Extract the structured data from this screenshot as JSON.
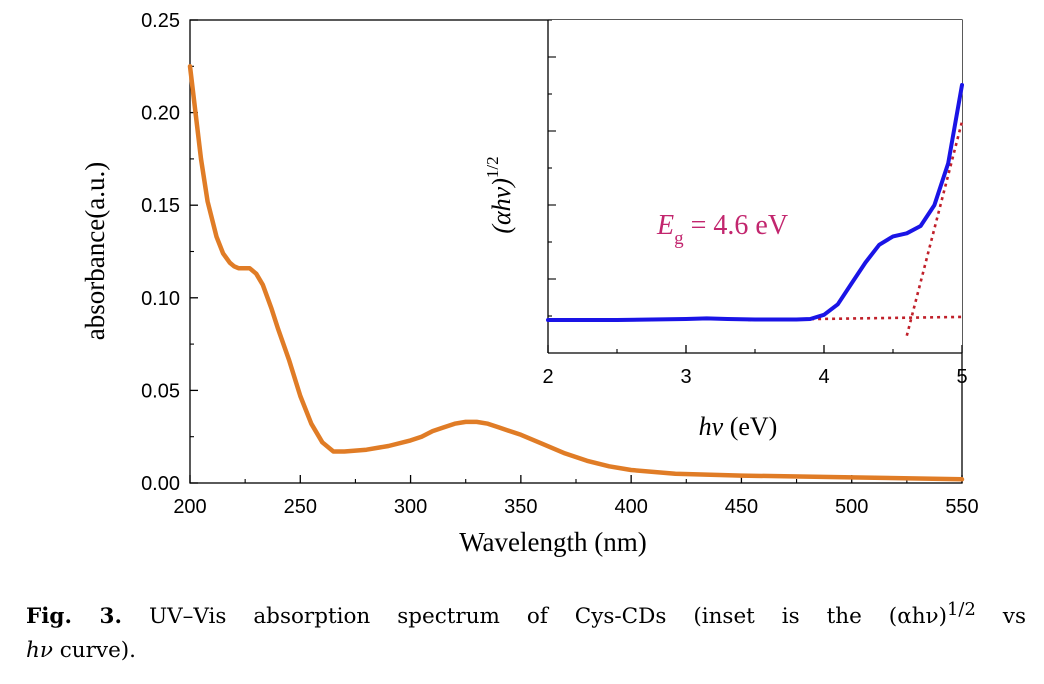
{
  "chart_data": [
    {
      "type": "line",
      "title": "",
      "xlabel": "Wavelength (nm)",
      "ylabel": "absorbance(a.u.)",
      "xlim": [
        200,
        550
      ],
      "ylim": [
        0.0,
        0.25
      ],
      "xticks": [
        "200",
        "250",
        "300",
        "350",
        "400",
        "450",
        "500",
        "550"
      ],
      "yticks": [
        "0.00",
        "0.05",
        "0.10",
        "0.15",
        "0.20",
        "0.25"
      ],
      "grid": false,
      "series": [
        {
          "color": "#E07C26",
          "x": [
            200,
            202,
            205,
            208,
            212,
            215,
            218,
            220,
            222,
            225,
            227,
            230,
            233,
            237,
            240,
            245,
            250,
            255,
            260,
            265,
            270,
            280,
            290,
            300,
            305,
            310,
            315,
            320,
            325,
            330,
            335,
            340,
            350,
            360,
            370,
            380,
            390,
            400,
            420,
            450,
            500,
            550
          ],
          "y": [
            0.225,
            0.205,
            0.175,
            0.152,
            0.133,
            0.124,
            0.119,
            0.117,
            0.116,
            0.116,
            0.116,
            0.113,
            0.107,
            0.094,
            0.083,
            0.066,
            0.047,
            0.032,
            0.022,
            0.017,
            0.017,
            0.018,
            0.02,
            0.023,
            0.025,
            0.028,
            0.03,
            0.032,
            0.033,
            0.033,
            0.032,
            0.03,
            0.026,
            0.021,
            0.016,
            0.012,
            0.009,
            0.007,
            0.005,
            0.004,
            0.003,
            0.002
          ]
        }
      ]
    },
    {
      "type": "line",
      "title": "",
      "xlabel": "hν (eV)",
      "ylabel": "(αhν)^1/2",
      "xlim": [
        2,
        5
      ],
      "xticks": [
        "2",
        "3",
        "4",
        "5"
      ],
      "annotation": "Eg = 4.6 eV",
      "series": [
        {
          "color": "#1A14E6",
          "x": [
            2.0,
            2.5,
            3.0,
            3.15,
            3.3,
            3.5,
            3.8,
            3.9,
            4.0,
            4.1,
            4.2,
            4.3,
            4.4,
            4.5,
            4.6,
            4.7,
            4.8,
            4.9,
            5.0
          ],
          "y": [
            0.0,
            0.0,
            0.01,
            0.015,
            0.01,
            0.005,
            0.005,
            0.01,
            0.05,
            0.15,
            0.35,
            0.55,
            0.72,
            0.8,
            0.83,
            0.9,
            1.1,
            1.5,
            2.25
          ]
        },
        {
          "color": "#C0202A",
          "x": [
            3.45,
            5.0
          ],
          "y": [
            0.0,
            0.03
          ]
        },
        {
          "color": "#C0202A",
          "x": [
            4.6,
            5.0
          ],
          "y": [
            -0.15,
            1.9
          ]
        }
      ]
    }
  ],
  "labels": {
    "inset_ylabel_base": "(αhν)",
    "inset_ylabel_sup": "1/2",
    "inset_xlabel_italic": "hν",
    "inset_xlabel_rest": " (eV)",
    "annot_E": "E",
    "annot_sub": "g",
    "annot_rest": " = 4.6 eV"
  },
  "caption": {
    "label": "Fig. 3.",
    "text_part1": " UV–Vis absorption spectrum of Cys-CDs (inset is the (αhν)",
    "sup": "1/2",
    "text_part2": " vs",
    "line2_italic": "hν",
    "line2_rest": " curve)."
  },
  "colors": {
    "main_curve": "#E07C26",
    "inset_curve": "#1A14E6",
    "fit_lines": "#C0202A",
    "annotation": "#C2266E"
  }
}
